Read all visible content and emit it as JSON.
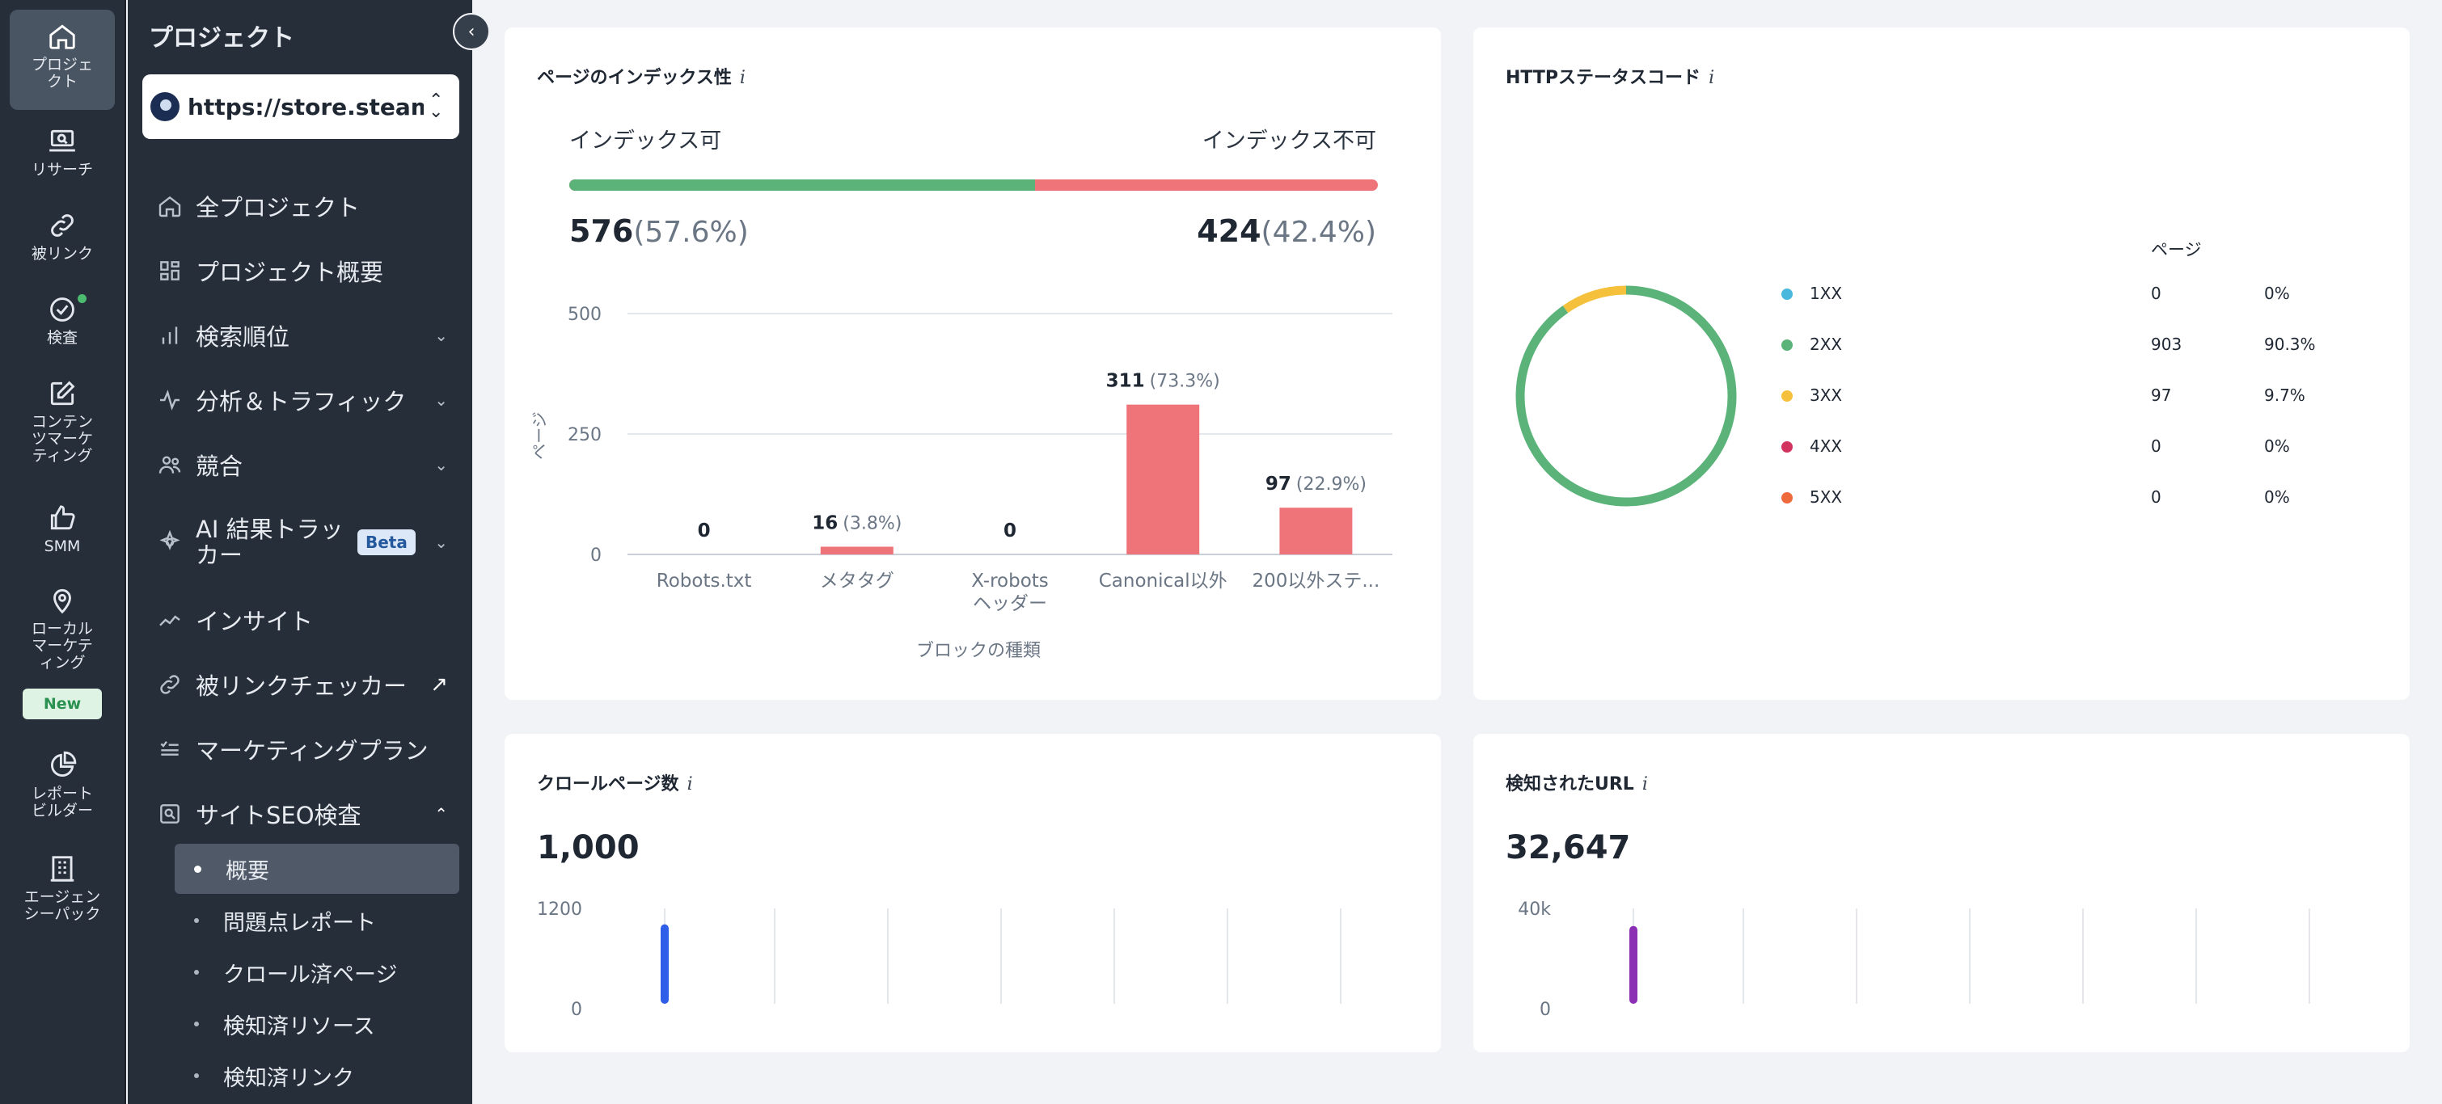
{
  "rail": {
    "items": [
      {
        "label": "プロジェクト",
        "icon": "home-icon"
      },
      {
        "label": "リサーチ",
        "icon": "laptop-search-icon"
      },
      {
        "label": "被リンク",
        "icon": "link-icon"
      },
      {
        "label": "検査",
        "icon": "check-circle-icon"
      },
      {
        "label": "コンテンツマーケティング",
        "icon": "edit-icon"
      },
      {
        "label": "SMM",
        "icon": "thumbs-up-icon"
      },
      {
        "label": "ローカルマーケティング",
        "icon": "map-pin-icon"
      },
      {
        "label": "レポートビルダー",
        "icon": "pie-chart-icon"
      },
      {
        "label": "エージェンシーパック",
        "icon": "building-icon"
      }
    ],
    "new_badge": "New"
  },
  "sidebar": {
    "title": "プロジェクト",
    "project_url": "https://store.steamp...",
    "nav": [
      {
        "label": "全プロジェクト",
        "icon": "home-icon"
      },
      {
        "label": "プロジェクト概要",
        "icon": "grid-icon"
      },
      {
        "label": "検索順位",
        "icon": "bar-chart-icon"
      },
      {
        "label": "分析＆トラフィック",
        "icon": "activity-icon"
      },
      {
        "label": "競合",
        "icon": "users-icon"
      },
      {
        "label": "AI 結果トラッカー",
        "icon": "ai-icon",
        "badge": "Beta"
      },
      {
        "label": "インサイト",
        "icon": "trend-icon"
      },
      {
        "label": "被リンクチェッカー",
        "icon": "link-icon"
      },
      {
        "label": "マーケティングプラン",
        "icon": "checklist-icon"
      },
      {
        "label": "サイトSEO検査",
        "icon": "search-doc-icon"
      }
    ],
    "sub": [
      {
        "label": "概要"
      },
      {
        "label": "問題点レポート"
      },
      {
        "label": "クロール済ページ"
      },
      {
        "label": "検知済リソース"
      },
      {
        "label": "検知済リンク"
      }
    ]
  },
  "indexability": {
    "title": "ページのインデックス性",
    "info": "i",
    "indexable_label": "インデックス可",
    "nonindexable_label": "インデックス不可",
    "indexable_count": "576",
    "indexable_pct": "(57.6%)",
    "nonindexable_count": "424",
    "nonindexable_pct": "(42.4%)",
    "indexable_share": 0.576,
    "colors": {
      "good": "#5bb37a",
      "bad": "#ef7479"
    }
  },
  "chart_data": [
    {
      "type": "bar",
      "categories": [
        "Robots.txt",
        "メタタグ",
        "X-robots ヘッダー",
        "Canonical以外",
        "200以外ステ..."
      ],
      "values": [
        0,
        16,
        0,
        311,
        97
      ],
      "value_labels": [
        "0",
        "16",
        "0",
        "311",
        "97"
      ],
      "pct_labels": [
        "",
        "(3.8%)",
        "",
        "(73.3%)",
        "(22.9%)"
      ],
      "xlabel": "ブロックの種類",
      "ylabel": "ページ",
      "ylim": [
        0,
        500
      ],
      "yticks": [
        "0",
        "250",
        "500"
      ],
      "grid": true,
      "color": "#ef7479"
    },
    {
      "type": "pie",
      "title": "HTTPステータスコード",
      "column_header": "ページ",
      "categories": [
        "1XX",
        "2XX",
        "3XX",
        "4XX",
        "5XX"
      ],
      "values": [
        0,
        903,
        97,
        0,
        0
      ],
      "pct_labels": [
        "0%",
        "90.3%",
        "9.7%",
        "0%",
        "0%"
      ],
      "colors": [
        "#4ab8dd",
        "#5bb37a",
        "#f5c13d",
        "#d2335f",
        "#ee6a3d"
      ]
    },
    {
      "type": "bar",
      "title": "クロールページ数",
      "total": "1,000",
      "values": [
        1000
      ],
      "ylim": [
        0,
        1200
      ],
      "yticks": [
        "0",
        "1200"
      ],
      "color": "#2f5ee9"
    },
    {
      "type": "bar",
      "title": "検知されたURL",
      "total": "32,647",
      "values": [
        32647
      ],
      "ylim": [
        0,
        40000
      ],
      "yticks": [
        "0",
        "40k"
      ],
      "color": "#8b2fb5"
    }
  ],
  "http": {
    "title": "HTTPステータスコード",
    "info": "i"
  },
  "crawl": {
    "title": "クロールページ数",
    "info": "i"
  },
  "urls": {
    "title": "検知されたURL",
    "info": "i"
  }
}
